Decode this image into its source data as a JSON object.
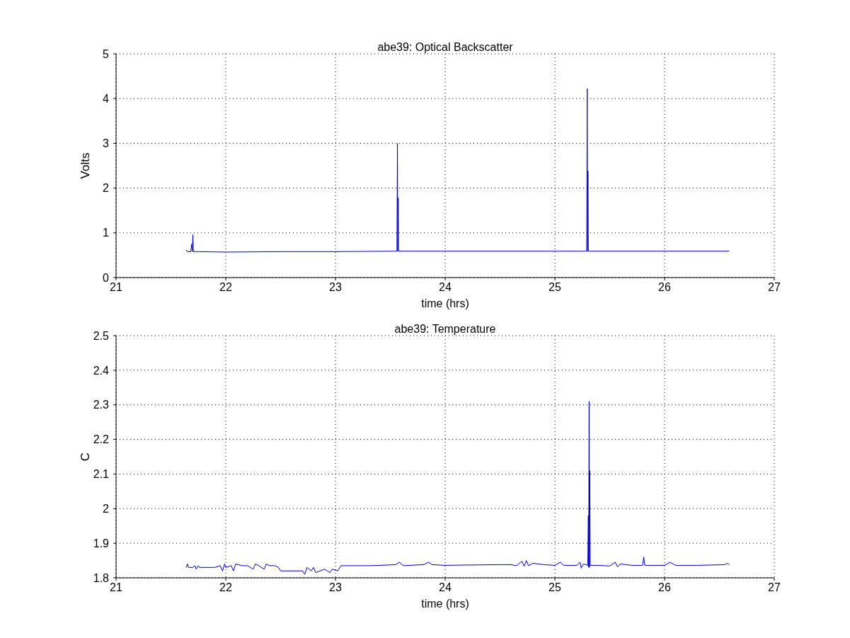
{
  "chart_data": [
    {
      "type": "line",
      "title": "abe39: Optical Backscatter",
      "xlabel": "time (hrs)",
      "ylabel": "Volts",
      "xlim": [
        21,
        27
      ],
      "xticks": [
        21,
        22,
        23,
        24,
        25,
        26,
        27
      ],
      "ylim": [
        0,
        5
      ],
      "yticks": [
        0,
        1,
        2,
        3,
        4,
        5
      ],
      "grid": true,
      "marker": "none",
      "line_style": "solid",
      "series": [
        {
          "color": "#0000c8",
          "x": [
            21.64,
            21.65,
            21.68,
            21.69,
            21.695,
            21.7,
            21.705,
            21.75,
            22.0,
            22.5,
            23.0,
            23.56,
            23.565,
            23.568,
            23.572,
            23.575,
            24.0,
            25.29,
            25.295,
            25.298,
            25.302,
            25.305,
            26.0,
            26.59
          ],
          "values": [
            0.62,
            0.58,
            0.58,
            0.75,
            0.58,
            0.96,
            0.58,
            0.58,
            0.57,
            0.58,
            0.58,
            0.59,
            3.0,
            0.59,
            1.78,
            0.59,
            0.59,
            0.59,
            4.22,
            0.59,
            2.38,
            0.59,
            0.59,
            0.59
          ]
        }
      ]
    },
    {
      "type": "line",
      "title": "abe39: Temperature",
      "xlabel": "time (hrs)",
      "ylabel": "C",
      "xlim": [
        21,
        27
      ],
      "xticks": [
        21,
        22,
        23,
        24,
        25,
        26,
        27
      ],
      "ylim": [
        1.8,
        2.5
      ],
      "yticks": [
        1.8,
        1.9,
        2,
        2.1,
        2.2,
        2.3,
        2.4,
        2.5
      ],
      "grid": true,
      "marker": "none",
      "line_style": "solid",
      "series": [
        {
          "color": "#0000c8",
          "x": [
            21.64,
            21.65,
            21.66,
            21.7,
            21.72,
            21.73,
            21.75,
            21.76,
            21.9,
            21.95,
            21.97,
            21.99,
            22.0,
            22.05,
            22.07,
            22.09,
            22.15,
            22.2,
            22.25,
            22.27,
            22.3,
            22.35,
            22.37,
            22.4,
            22.45,
            22.48,
            22.5,
            22.6,
            22.7,
            22.72,
            22.74,
            22.78,
            22.8,
            22.82,
            22.9,
            22.95,
            22.97,
            23.02,
            23.05,
            23.1,
            23.3,
            23.4,
            23.55,
            23.58,
            23.62,
            23.8,
            23.85,
            23.88,
            24.0,
            24.2,
            24.5,
            24.6,
            24.65,
            24.7,
            24.72,
            24.74,
            24.76,
            24.8,
            24.9,
            25.0,
            25.05,
            25.08,
            25.2,
            25.23,
            25.24,
            25.26,
            25.3,
            25.305,
            25.308,
            25.312,
            25.315,
            25.318,
            25.322,
            25.4,
            25.5,
            25.55,
            25.57,
            25.6,
            25.7,
            25.8,
            25.81,
            25.82,
            26.0,
            26.05,
            26.1,
            26.3,
            26.55,
            26.57,
            26.59
          ],
          "values": [
            1.83,
            1.84,
            1.83,
            1.83,
            1.835,
            1.825,
            1.835,
            1.83,
            1.83,
            1.835,
            1.82,
            1.84,
            1.83,
            1.835,
            1.82,
            1.84,
            1.835,
            1.835,
            1.825,
            1.84,
            1.835,
            1.825,
            1.84,
            1.835,
            1.835,
            1.83,
            1.82,
            1.82,
            1.82,
            1.81,
            1.83,
            1.82,
            1.83,
            1.815,
            1.825,
            1.815,
            1.825,
            1.82,
            1.835,
            1.835,
            1.835,
            1.836,
            1.838,
            1.845,
            1.835,
            1.838,
            1.845,
            1.838,
            1.836,
            1.837,
            1.838,
            1.838,
            1.835,
            1.848,
            1.833,
            1.85,
            1.835,
            1.842,
            1.838,
            1.836,
            1.845,
            1.836,
            1.836,
            1.845,
            1.828,
            1.84,
            1.836,
            1.98,
            1.83,
            2.31,
            1.83,
            2.11,
            1.836,
            1.836,
            1.834,
            1.845,
            1.832,
            1.84,
            1.836,
            1.836,
            1.86,
            1.836,
            1.836,
            1.845,
            1.836,
            1.836,
            1.838,
            1.842,
            1.838
          ]
        }
      ]
    }
  ]
}
